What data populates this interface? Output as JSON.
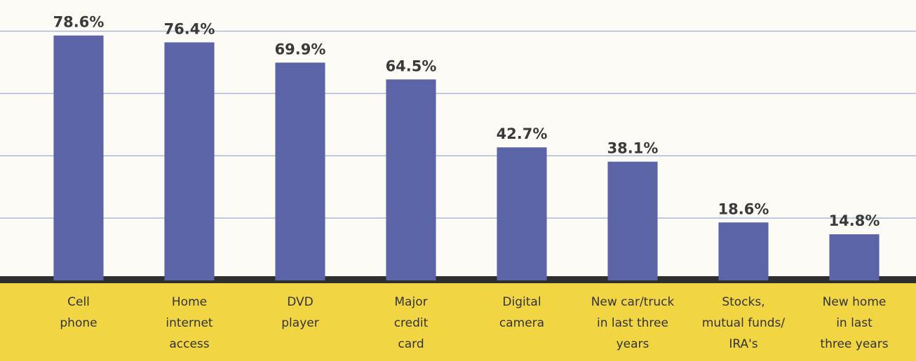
{
  "chart_data": {
    "type": "bar",
    "categories": [
      "Cell\nphone",
      "Home\ninternet\naccess",
      "DVD\nplayer",
      "Major\ncredit\ncard",
      "Digital\ncamera",
      "New car/truck\nin last three\nyears",
      "Stocks,\nmutual funds/\nIRA's",
      "New home\nin last\nthree years"
    ],
    "values": [
      78.6,
      76.4,
      69.9,
      64.5,
      42.7,
      38.1,
      18.6,
      14.8
    ],
    "value_labels": [
      "78.6%",
      "76.4%",
      "69.9%",
      "64.5%",
      "42.7%",
      "38.1%",
      "18.6%",
      "14.8%"
    ],
    "color": "#5a64a6",
    "ylim": [
      0,
      90
    ],
    "yticks": [
      0,
      20,
      40,
      60,
      80
    ],
    "grid": true
  }
}
